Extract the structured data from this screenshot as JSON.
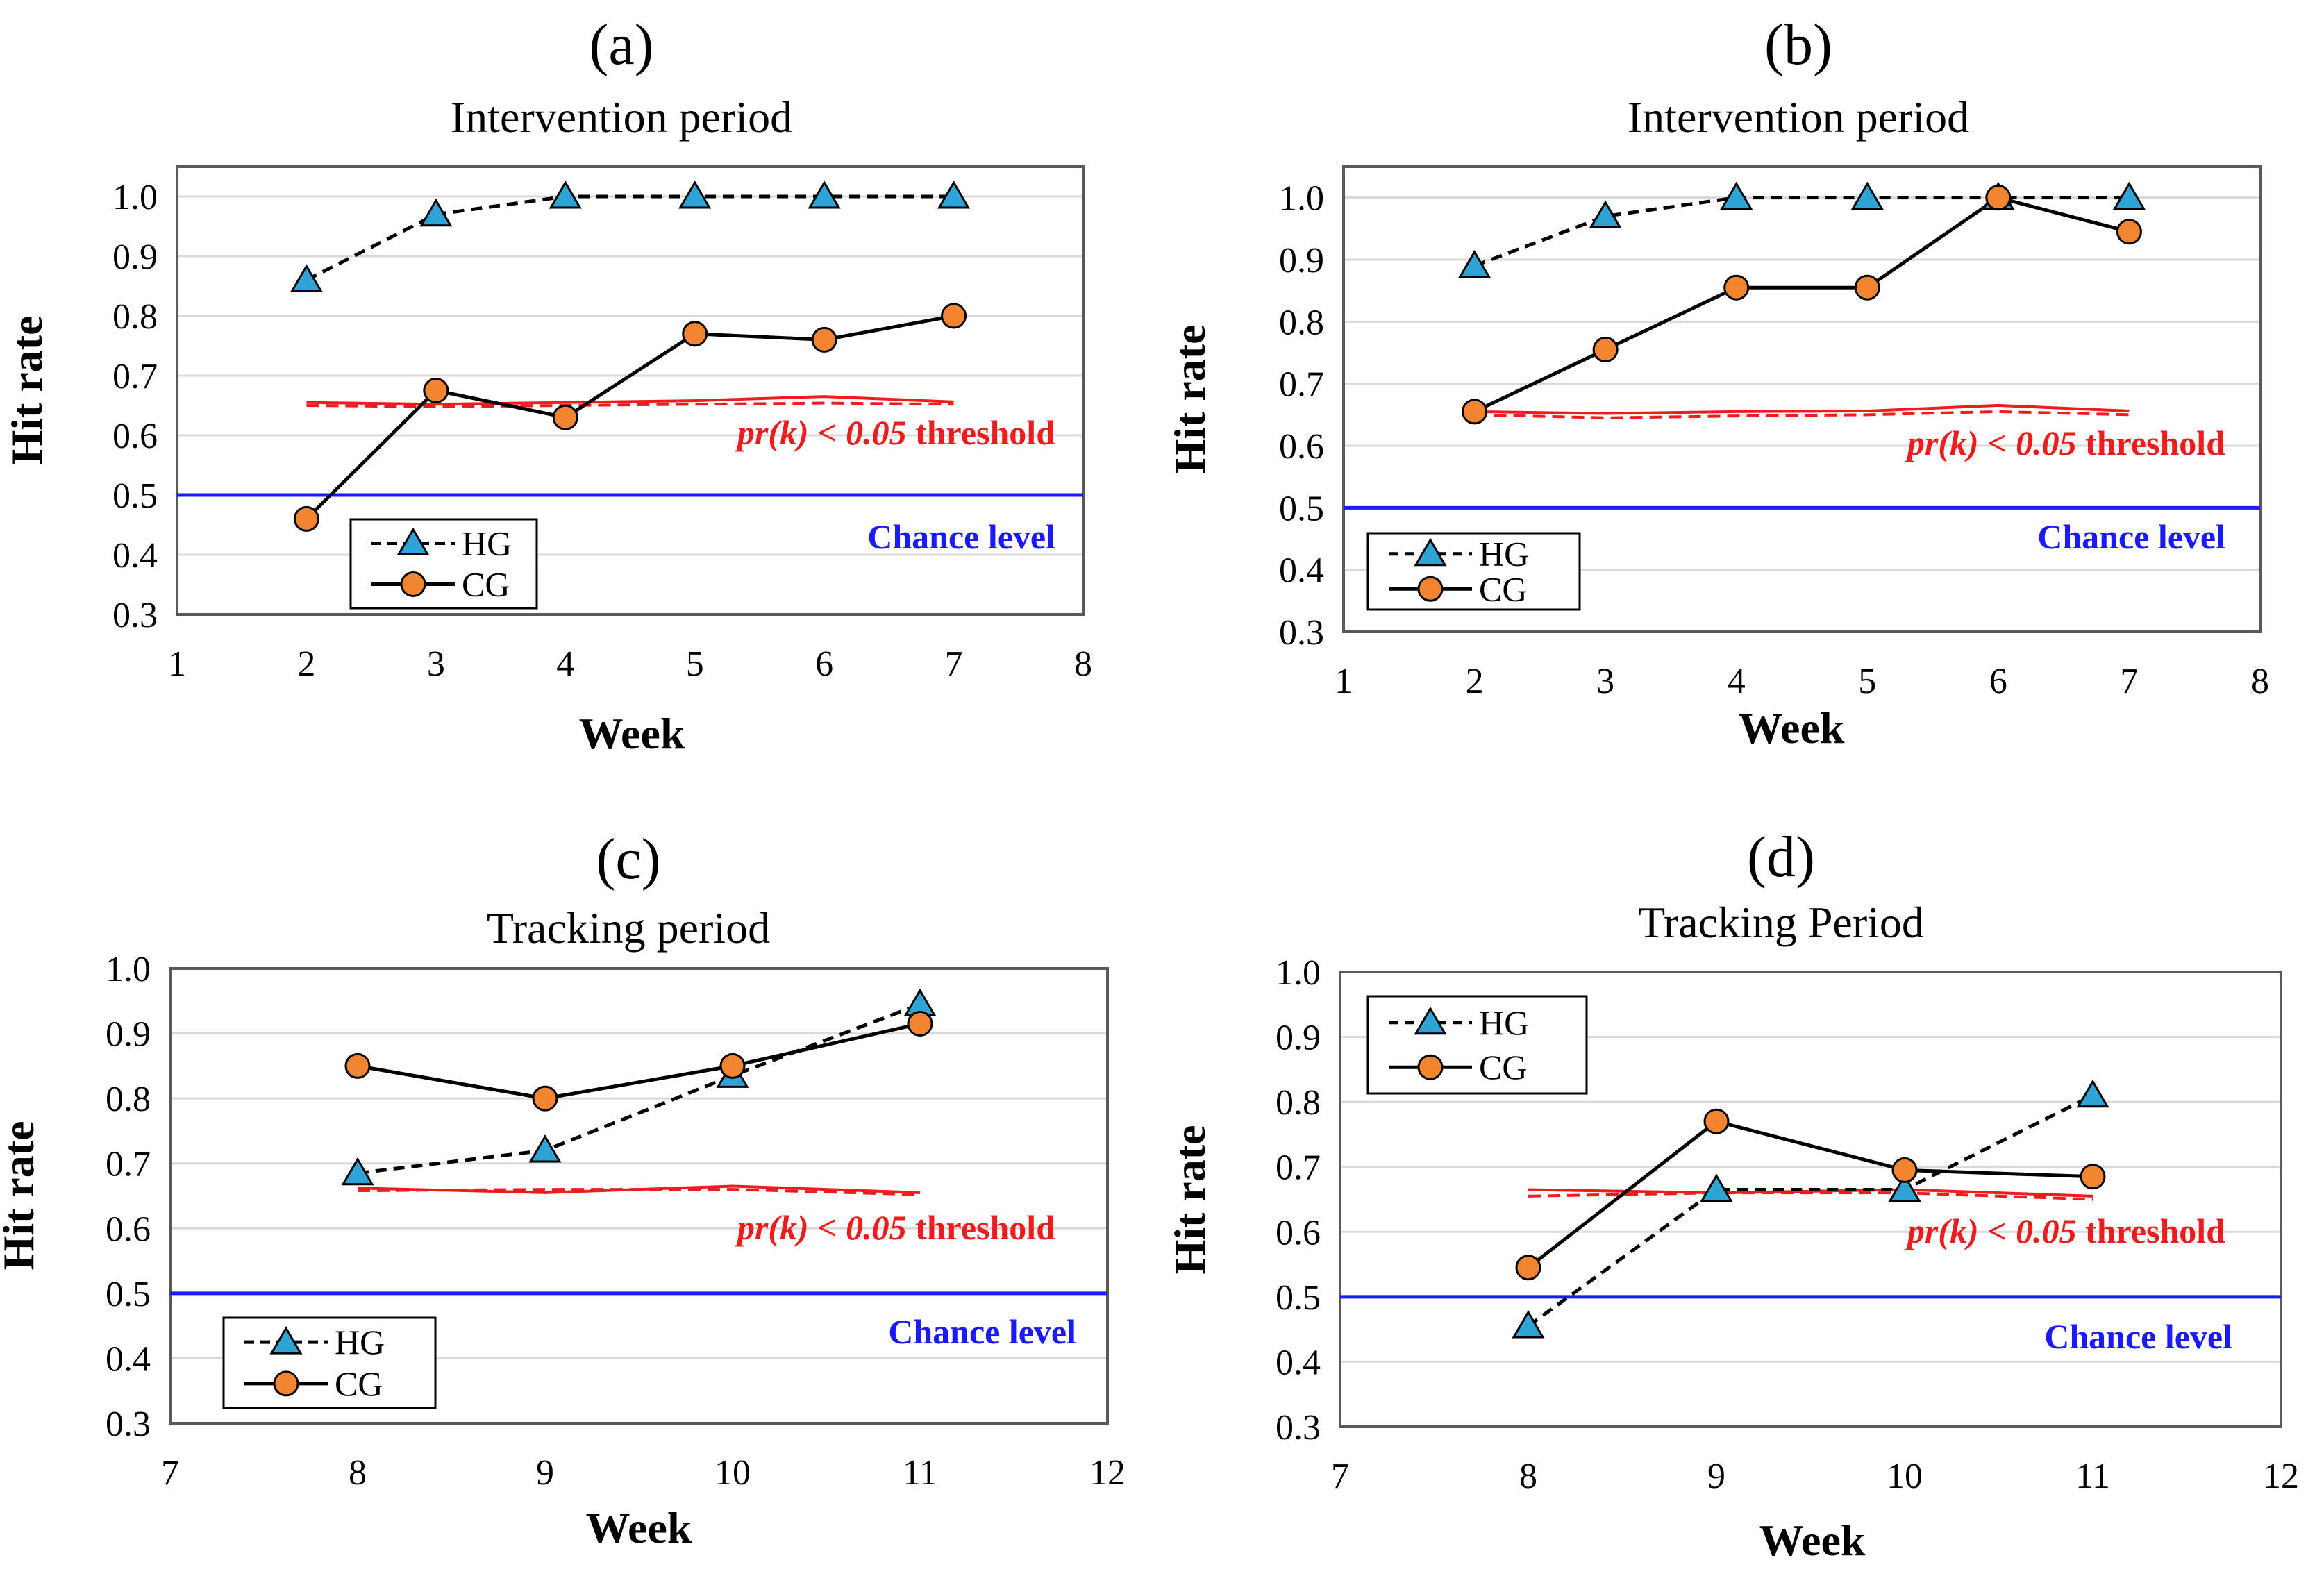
{
  "chart_data": [
    {
      "type": "line",
      "panel_label": "(a)",
      "title": "Intervention period",
      "xlabel": "Week",
      "ylabel": "Hit rate",
      "xlim": [
        1,
        8
      ],
      "ylim": [
        0.3,
        1.05
      ],
      "xticks": [
        "1",
        "2",
        "3",
        "4",
        "5",
        "6",
        "7",
        "8"
      ],
      "yticks": [
        "0.3",
        "0.4",
        "0.5",
        "0.6",
        "0.7",
        "0.8",
        "0.9",
        "1.0"
      ],
      "grid": true,
      "legend_position": "bottom-left",
      "series": [
        {
          "name": "HG",
          "style": "dashed-triangle",
          "x": [
            2,
            3,
            4,
            5,
            6,
            7
          ],
          "values": [
            0.86,
            0.97,
            1.0,
            1.0,
            1.0,
            1.0
          ]
        },
        {
          "name": "CG",
          "style": "solid-circle",
          "x": [
            2,
            3,
            4,
            5,
            6,
            7
          ],
          "values": [
            0.46,
            0.675,
            0.63,
            0.77,
            0.76,
            0.8
          ]
        }
      ],
      "threshold": {
        "label_pre": "pr(k) < 0.05",
        "label_post": " threshold",
        "x": [
          2,
          3,
          4,
          5,
          6,
          7
        ],
        "values_solid": [
          0.655,
          0.652,
          0.655,
          0.658,
          0.665,
          0.656
        ],
        "values_dashed": [
          0.65,
          0.648,
          0.65,
          0.652,
          0.654,
          0.652
        ]
      },
      "chance": {
        "label": "Chance level",
        "value": 0.5
      }
    },
    {
      "type": "line",
      "panel_label": "(b)",
      "title": "Intervention period",
      "xlabel": "Week",
      "ylabel": "Hit rate",
      "xlim": [
        1,
        8
      ],
      "ylim": [
        0.3,
        1.05
      ],
      "xticks": [
        "1",
        "2",
        "3",
        "4",
        "5",
        "6",
        "7",
        "8"
      ],
      "yticks": [
        "0.3",
        "0.4",
        "0.5",
        "0.6",
        "0.7",
        "0.8",
        "0.9",
        "1.0"
      ],
      "grid": true,
      "legend_position": "bottom-left",
      "series": [
        {
          "name": "HG",
          "style": "dashed-triangle",
          "x": [
            2,
            3,
            4,
            5,
            6,
            7
          ],
          "values": [
            0.89,
            0.97,
            1.0,
            1.0,
            1.0,
            1.0
          ]
        },
        {
          "name": "CG",
          "style": "solid-circle",
          "x": [
            2,
            3,
            4,
            5,
            6,
            7
          ],
          "values": [
            0.655,
            0.755,
            0.855,
            0.855,
            1.0,
            0.945
          ]
        }
      ],
      "threshold": {
        "label_pre": "pr(k) < 0.05",
        "label_post": " threshold",
        "x": [
          2,
          3,
          4,
          5,
          6,
          7
        ],
        "values_solid": [
          0.655,
          0.652,
          0.655,
          0.656,
          0.665,
          0.656
        ],
        "values_dashed": [
          0.65,
          0.645,
          0.648,
          0.65,
          0.655,
          0.65
        ]
      },
      "chance": {
        "label": "Chance level",
        "value": 0.5
      }
    },
    {
      "type": "line",
      "panel_label": "(c)",
      "title": "Tracking period",
      "xlabel": "Week",
      "ylabel": "Hit rate",
      "xlim": [
        7,
        12
      ],
      "ylim": [
        0.3,
        1.0
      ],
      "xticks": [
        "7",
        "8",
        "9",
        "10",
        "11",
        "12"
      ],
      "yticks": [
        "0.3",
        "0.4",
        "0.5",
        "0.6",
        "0.7",
        "0.8",
        "0.9",
        "1.0"
      ],
      "grid": true,
      "legend_position": "bottom-left",
      "series": [
        {
          "name": "HG",
          "style": "dashed-triangle",
          "x": [
            8,
            9,
            10,
            11
          ],
          "values": [
            0.685,
            0.72,
            0.835,
            0.945
          ]
        },
        {
          "name": "CG",
          "style": "solid-circle",
          "x": [
            8,
            9,
            10,
            11
          ],
          "values": [
            0.85,
            0.8,
            0.85,
            0.915
          ]
        }
      ],
      "threshold": {
        "label_pre": "pr(k) < 0.05",
        "label_post": " threshold",
        "x": [
          8,
          9,
          10,
          11
        ],
        "values_solid": [
          0.662,
          0.655,
          0.665,
          0.655
        ],
        "values_dashed": [
          0.658,
          0.66,
          0.66,
          0.652
        ]
      },
      "chance": {
        "label": "Chance level",
        "value": 0.5
      }
    },
    {
      "type": "line",
      "panel_label": "(d)",
      "title": "Tracking Period",
      "xlabel": "Week",
      "ylabel": "Hit rate",
      "xlim": [
        7,
        12
      ],
      "ylim": [
        0.3,
        1.0
      ],
      "xticks": [
        "7",
        "8",
        "9",
        "10",
        "11",
        "12"
      ],
      "yticks": [
        "0.3",
        "0.4",
        "0.5",
        "0.6",
        "0.7",
        "0.8",
        "0.9",
        "1.0"
      ],
      "grid": true,
      "legend_position": "top-left",
      "series": [
        {
          "name": "HG",
          "style": "dashed-triangle",
          "x": [
            8,
            9,
            10,
            11
          ],
          "values": [
            0.455,
            0.665,
            0.665,
            0.81
          ]
        },
        {
          "name": "CG",
          "style": "solid-circle",
          "x": [
            8,
            9,
            10,
            11
          ],
          "values": [
            0.545,
            0.77,
            0.695,
            0.685
          ]
        }
      ],
      "threshold": {
        "label_pre": "pr(k) < 0.05",
        "label_post": " threshold",
        "x": [
          8,
          9,
          10,
          11
        ],
        "values_solid": [
          0.665,
          0.66,
          0.665,
          0.655
        ],
        "values_dashed": [
          0.655,
          0.66,
          0.66,
          0.65
        ]
      },
      "chance": {
        "label": "Chance level",
        "value": 0.5
      }
    }
  ],
  "colors": {
    "hg_marker": "#2ea3d6",
    "cg_marker": "#f28530",
    "threshold": "#ee1c1c",
    "chance": "#1a1aff",
    "grid": "#d9d9d9",
    "axis": "#595959"
  }
}
